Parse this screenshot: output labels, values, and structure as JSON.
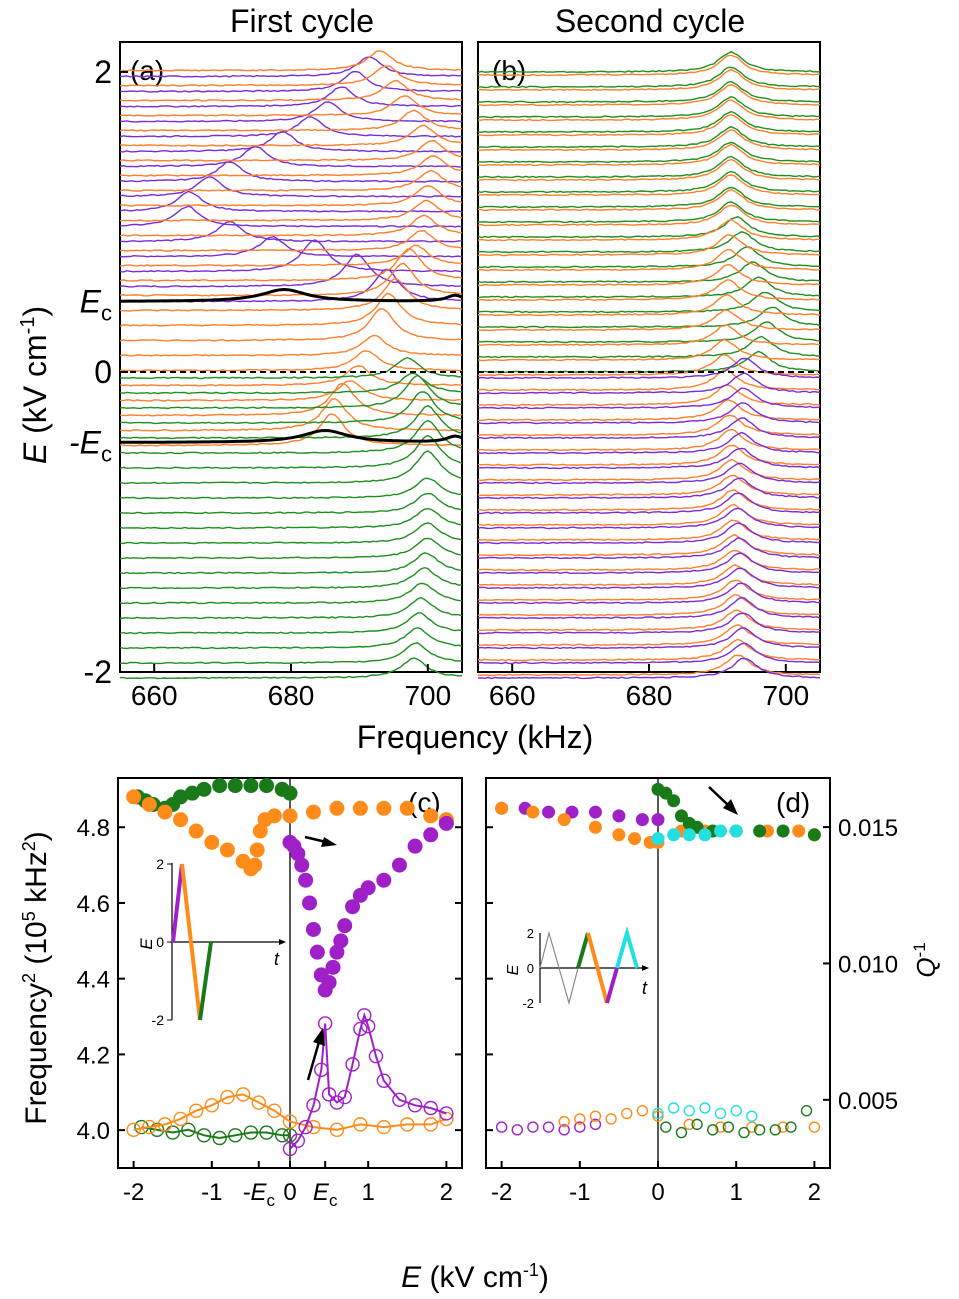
{
  "colors": {
    "purple": "#7a2cd6",
    "orange": "#ff7f2a",
    "green": "#1f8f1f",
    "black": "#000000",
    "dot_purple": "#a020c8",
    "dot_orange": "#ff8c1a",
    "dot_green": "#1a7a1a",
    "dot_cyan": "#22e0e0"
  },
  "chart_data": [
    {
      "id": "a",
      "type": "line",
      "panel_label": "(a)",
      "title": "First cycle",
      "xlabel": "Frequency (kHz)",
      "ylabel_main": "E",
      "ylabel_unit": " (kV cm",
      "ylabel_exp": "-1",
      "ylabel_close": ")",
      "xlim": [
        655,
        705
      ],
      "ylim": [
        -2,
        2.2
      ],
      "xticks": [
        660,
        680,
        700
      ],
      "yticks": [
        {
          "v": 2,
          "t": "2"
        },
        {
          "v": 0,
          "t": "0"
        },
        {
          "v": -2,
          "t": "-2"
        }
      ],
      "ec_labels": [
        {
          "v": 0.47,
          "t": "E",
          "sub": "c"
        },
        {
          "v": -0.47,
          "t": "-E",
          "sub": "c"
        }
      ],
      "black_lines": [
        0.47,
        -0.47
      ],
      "zero_line": 0,
      "series": [
        {
          "color": "purple",
          "e_range": [
            0.47,
            2.0
          ],
          "peaks": [
            [
              0.5,
              694
            ],
            [
              1.0,
              663
            ],
            [
              1.3,
              672
            ],
            [
              1.6,
              684
            ],
            [
              1.9,
              690
            ],
            [
              2.0,
              692
            ]
          ]
        },
        {
          "color": "orange",
          "e_range": [
            -0.47,
            2.0
          ],
          "peaks": [
            [
              -0.4,
              686
            ],
            [
              0.2,
              693
            ],
            [
              0.8,
              699
            ],
            [
              1.4,
              701
            ],
            [
              2.0,
              693
            ]
          ]
        },
        {
          "color": "green",
          "e_range": [
            -2.0,
            0.0
          ],
          "peaks": [
            [
              -2.0,
              698
            ],
            [
              -1.2,
              700
            ],
            [
              -0.4,
              700
            ],
            [
              0.0,
              697
            ]
          ]
        }
      ]
    },
    {
      "id": "b",
      "type": "line",
      "panel_label": "(b)",
      "title": "Second cycle",
      "xlabel": "Frequency (kHz)",
      "xlim": [
        655,
        705
      ],
      "ylim": [
        -2,
        2.2
      ],
      "xticks": [
        660,
        680,
        700
      ],
      "zero_line": 0,
      "series": [
        {
          "color": "green",
          "e_range": [
            0.0,
            2.0
          ],
          "peaks": [
            [
              0.05,
              696
            ],
            [
              0.3,
              698
            ],
            [
              0.5,
              696
            ],
            [
              1.0,
              692
            ],
            [
              2.0,
              692
            ]
          ]
        },
        {
          "color": "orange",
          "e_range": [
            -2.0,
            2.0
          ],
          "peaks": [
            [
              -2.0,
              693
            ],
            [
              -0.5,
              692
            ],
            [
              0.0,
              691
            ],
            [
              1.0,
              692
            ],
            [
              2.0,
              692
            ]
          ]
        },
        {
          "color": "purple",
          "e_range": [
            -2.0,
            0.0
          ],
          "peaks": [
            [
              -2.0,
              694
            ],
            [
              -1.0,
              693
            ],
            [
              0.0,
              694
            ]
          ]
        }
      ]
    },
    {
      "id": "c",
      "type": "scatter",
      "panel_label": "(c)",
      "xlabel_main": "E",
      "xlabel_unit": " (kV cm",
      "xlabel_exp": "-1",
      "xlabel_close": ")",
      "ylabel_main": "Frequency",
      "ylabel_sup1": "2",
      "ylabel_mid": " (10",
      "ylabel_sup2": "5",
      "ylabel_end": " kHz",
      "ylabel_sup3": "2",
      "ylabel_close": ")",
      "xlim": [
        -2.2,
        2.2
      ],
      "ylim": [
        3.9,
        4.93
      ],
      "yticks": [
        "4.0",
        "4.2",
        "4.4",
        "4.6",
        "4.8"
      ],
      "xticks": [
        {
          "v": -2,
          "t": "-2"
        },
        {
          "v": -1,
          "t": "-1"
        },
        {
          "v": -0.4,
          "t": "-E",
          "sub": "c"
        },
        {
          "v": 0,
          "t": "0"
        },
        {
          "v": 0.45,
          "t": "E",
          "sub": "c"
        },
        {
          "v": 1,
          "t": "1"
        },
        {
          "v": 2,
          "t": "2"
        }
      ],
      "freq_series": [
        {
          "color": "dot_green",
          "x": [
            -1.95,
            -1.85,
            -1.75,
            -1.6,
            -1.5,
            -1.4,
            -1.25,
            -1.1,
            -0.9,
            -0.7,
            -0.5,
            -0.3,
            -0.1,
            0.0
          ],
          "y": [
            4.88,
            4.87,
            4.86,
            4.85,
            4.86,
            4.88,
            4.89,
            4.9,
            4.91,
            4.91,
            4.91,
            4.91,
            4.9,
            4.89
          ]
        },
        {
          "color": "dot_orange",
          "x": [
            -2.0,
            -1.8,
            -1.6,
            -1.4,
            -1.2,
            -1.0,
            -0.8,
            -0.6,
            -0.5,
            -0.45,
            -0.42,
            -0.38,
            -0.32,
            -0.2,
            0.0,
            0.3,
            0.6,
            0.9,
            1.2,
            1.5,
            1.8,
            2.0
          ],
          "y": [
            4.88,
            4.86,
            4.84,
            4.82,
            4.79,
            4.76,
            4.74,
            4.71,
            4.69,
            4.7,
            4.74,
            4.79,
            4.82,
            4.83,
            4.83,
            4.84,
            4.85,
            4.85,
            4.85,
            4.85,
            4.83,
            4.82
          ]
        },
        {
          "color": "dot_purple",
          "x": [
            0.0,
            0.05,
            0.1,
            0.15,
            0.2,
            0.25,
            0.3,
            0.35,
            0.4,
            0.45,
            0.5,
            0.55,
            0.6,
            0.65,
            0.7,
            0.8,
            0.9,
            1.0,
            1.2,
            1.4,
            1.6,
            1.8,
            2.0
          ],
          "y": [
            4.76,
            4.75,
            4.73,
            4.7,
            4.66,
            4.6,
            4.53,
            4.47,
            4.41,
            4.37,
            4.39,
            4.43,
            4.47,
            4.5,
            4.54,
            4.59,
            4.62,
            4.64,
            4.66,
            4.7,
            4.75,
            4.78,
            4.81
          ]
        }
      ],
      "q_ylim": [
        0.0025,
        0.0168
      ],
      "q_yticks": [
        "0.005",
        "0.010",
        "0.015"
      ],
      "q_label": "Q",
      "q_label_exp": "-1",
      "q_series": [
        {
          "color": "dot_green",
          "x": [
            -1.9,
            -1.7,
            -1.5,
            -1.3,
            -1.1,
            -0.9,
            -0.7,
            -0.5,
            -0.3,
            -0.1,
            0.0
          ],
          "y": [
            0.004,
            0.0039,
            0.0038,
            0.0039,
            0.0037,
            0.0036,
            0.0037,
            0.0038,
            0.0038,
            0.0037,
            0.0037
          ]
        },
        {
          "color": "dot_orange",
          "x": [
            -2.0,
            -1.8,
            -1.6,
            -1.4,
            -1.2,
            -1.0,
            -0.8,
            -0.6,
            -0.4,
            -0.2,
            0.0,
            0.3,
            0.6,
            0.9,
            1.2,
            1.5,
            1.8,
            2.0
          ],
          "y": [
            0.0039,
            0.004,
            0.0041,
            0.0043,
            0.0046,
            0.0048,
            0.0051,
            0.0052,
            0.0049,
            0.0046,
            0.0042,
            0.004,
            0.0039,
            0.0041,
            0.004,
            0.0041,
            0.0041,
            0.0043
          ]
        },
        {
          "color": "dot_purple",
          "x": [
            0.0,
            0.1,
            0.2,
            0.3,
            0.4,
            0.45,
            0.5,
            0.6,
            0.7,
            0.8,
            0.9,
            0.95,
            1.0,
            1.1,
            1.2,
            1.4,
            1.6,
            1.8,
            2.0
          ],
          "y": [
            0.0032,
            0.0035,
            0.004,
            0.0048,
            0.0061,
            0.0078,
            0.0052,
            0.0049,
            0.0051,
            0.0063,
            0.0076,
            0.0081,
            0.0077,
            0.0066,
            0.0057,
            0.005,
            0.0048,
            0.0047,
            0.0045
          ]
        }
      ],
      "inset": {
        "ylabel": "E",
        "xlabel": "t",
        "yticks": [
          "2",
          "0",
          "-2"
        ]
      }
    },
    {
      "id": "d",
      "type": "scatter",
      "panel_label": "(d)",
      "xlim": [
        -2.2,
        2.2
      ],
      "ylim": [
        3.9,
        4.93
      ],
      "xticks": [
        {
          "v": -2,
          "t": "-2"
        },
        {
          "v": -1,
          "t": "-1"
        },
        {
          "v": 0,
          "t": "0"
        },
        {
          "v": 1,
          "t": "1"
        },
        {
          "v": 2,
          "t": "2"
        }
      ],
      "freq_series": [
        {
          "color": "dot_purple",
          "x": [
            -2.0,
            -1.7,
            -1.4,
            -1.1,
            -0.8,
            -0.5,
            -0.2,
            0.0
          ],
          "y": [
            4.85,
            4.85,
            4.84,
            4.84,
            4.84,
            4.83,
            4.82,
            4.82
          ]
        },
        {
          "color": "dot_orange",
          "x": [
            -2.0,
            -1.6,
            -1.2,
            -0.8,
            -0.5,
            -0.3,
            -0.1,
            0.0,
            0.3,
            0.6,
            1.0,
            1.4,
            1.8,
            2.0
          ],
          "y": [
            4.85,
            4.84,
            4.82,
            4.8,
            4.78,
            4.77,
            4.76,
            4.76,
            4.79,
            4.79,
            4.79,
            4.79,
            4.79,
            4.78
          ]
        },
        {
          "color": "dot_green",
          "x": [
            0.0,
            0.1,
            0.2,
            0.3,
            0.4,
            0.5,
            0.7,
            1.0,
            1.3,
            1.6,
            2.0
          ],
          "y": [
            4.9,
            4.89,
            4.87,
            4.83,
            4.81,
            4.8,
            4.79,
            4.79,
            4.79,
            4.79,
            4.78
          ]
        },
        {
          "color": "dot_cyan",
          "x": [
            0.0,
            0.2,
            0.4,
            0.6,
            0.8,
            1.0
          ],
          "y": [
            4.77,
            4.78,
            4.78,
            4.78,
            4.79,
            4.79
          ]
        }
      ],
      "q_series": [
        {
          "color": "dot_purple",
          "x": [
            -2.0,
            -1.8,
            -1.6,
            -1.4,
            -1.2,
            -1.0,
            -0.8
          ],
          "y": [
            0.004,
            0.0039,
            0.004,
            0.004,
            0.0039,
            0.004,
            0.0041
          ]
        },
        {
          "color": "dot_orange",
          "x": [
            -1.2,
            -1.0,
            -0.8,
            -0.6,
            -0.4,
            -0.2,
            0.0,
            0.4,
            0.8,
            1.2,
            1.6,
            2.0
          ],
          "y": [
            0.0042,
            0.0043,
            0.0044,
            0.0043,
            0.0045,
            0.0046,
            0.0044,
            0.0041,
            0.004,
            0.004,
            0.004,
            0.004
          ]
        },
        {
          "color": "dot_green",
          "x": [
            0.1,
            0.3,
            0.5,
            0.7,
            0.9,
            1.1,
            1.3,
            1.5,
            1.7,
            1.9
          ],
          "y": [
            0.004,
            0.0038,
            0.0041,
            0.0039,
            0.004,
            0.0038,
            0.0039,
            0.0039,
            0.004,
            0.0046
          ]
        },
        {
          "color": "dot_cyan",
          "x": [
            0.0,
            0.2,
            0.4,
            0.6,
            0.8,
            1.0,
            1.2
          ],
          "y": [
            0.0045,
            0.0047,
            0.0046,
            0.0047,
            0.0045,
            0.0046,
            0.0044
          ]
        }
      ],
      "inset": {
        "ylabel": "E",
        "xlabel": "t",
        "yticks": [
          "2",
          "0",
          "-2"
        ]
      }
    }
  ]
}
